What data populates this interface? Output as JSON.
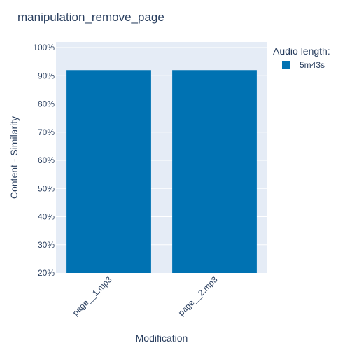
{
  "chart_data": {
    "type": "bar",
    "title": "manipulation_remove_page",
    "xlabel": "Modification",
    "ylabel": "Content - Similarity",
    "categories": [
      "page__1.mp3",
      "page__2.mp3"
    ],
    "series": [
      {
        "name": "5m43s",
        "values": [
          0.92,
          0.92
        ],
        "color": "#0072b2"
      }
    ],
    "ylim": [
      0.2,
      1.02
    ],
    "yticks": [
      0.2,
      0.3,
      0.4,
      0.5,
      0.6,
      0.7,
      0.8,
      0.9,
      1.0
    ],
    "ytick_labels": [
      "20%",
      "30%",
      "40%",
      "50%",
      "60%",
      "70%",
      "80%",
      "90%",
      "100%"
    ],
    "legend": {
      "title": "Audio length:",
      "placement": "top-right"
    },
    "grid": true,
    "plot_bg": "#e5ecf6"
  }
}
